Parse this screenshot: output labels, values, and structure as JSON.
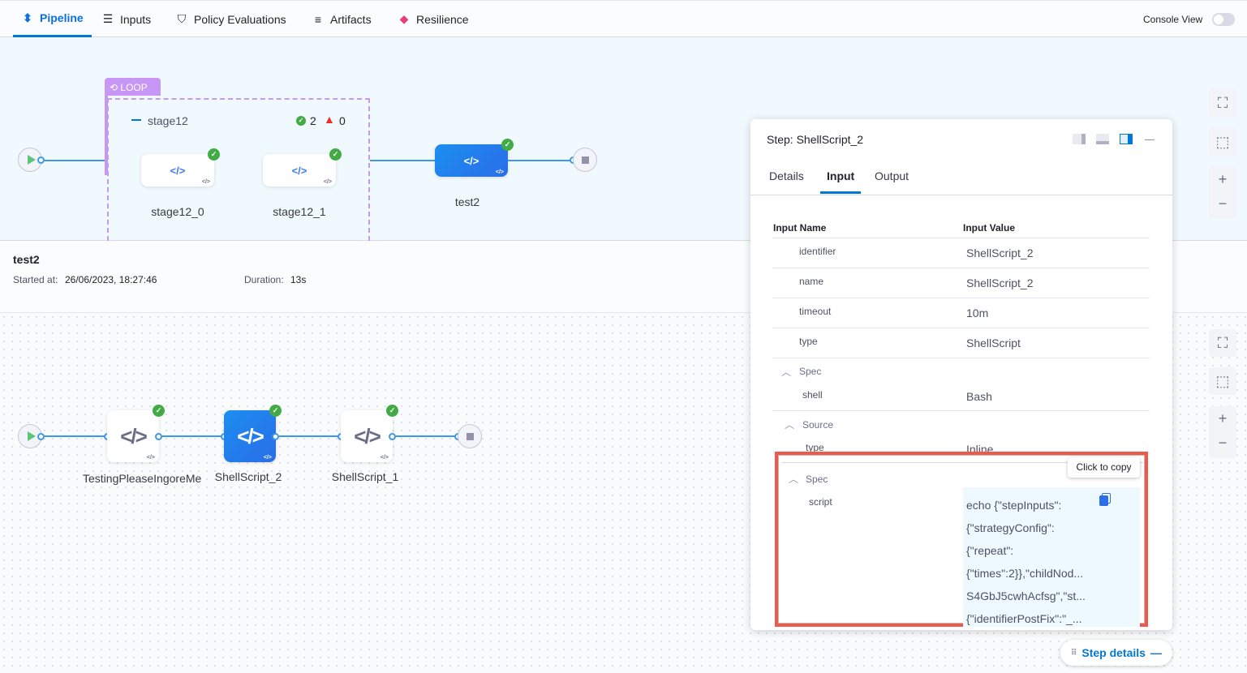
{
  "tabs": [
    {
      "label": "Pipeline",
      "icon": "pipeline-icon",
      "active": true
    },
    {
      "label": "Inputs",
      "icon": "inputs-icon"
    },
    {
      "label": "Policy Evaluations",
      "icon": "shield-check-icon"
    },
    {
      "label": "Artifacts",
      "icon": "artifacts-icon"
    },
    {
      "label": "Resilience",
      "icon": "resilience-icon"
    }
  ],
  "console_view": {
    "label": "Console View",
    "enabled": false
  },
  "upper_graph": {
    "loop_label": "LOOP",
    "stage_group": "stage12",
    "success_count": "2",
    "failure_count": "0",
    "stages": [
      "stage12_0",
      "stage12_1"
    ],
    "next_stage": "test2"
  },
  "info": {
    "title": "test2",
    "started_label": "Started at:",
    "started_value": "26/06/2023, 18:27:46",
    "duration_label": "Duration:",
    "duration_value": "13s"
  },
  "steps": [
    "TestingPleaseIngoreMe",
    "ShellScript_2",
    "ShellScript_1"
  ],
  "panel": {
    "title": "Step: ShellScript_2",
    "tabs": [
      "Details",
      "Input",
      "Output"
    ],
    "active_tab": "Input",
    "col_name": "Input Name",
    "col_value": "Input Value",
    "rows": [
      {
        "k": "identifier",
        "v": "ShellScript_2"
      },
      {
        "k": "name",
        "v": "ShellScript_2"
      },
      {
        "k": "timeout",
        "v": "10m"
      },
      {
        "k": "type",
        "v": "ShellScript"
      }
    ],
    "spec_label": "Spec",
    "shell": {
      "k": "shell",
      "v": "Bash"
    },
    "source_label": "Source",
    "source_type": {
      "k": "type",
      "v": "Inline"
    },
    "spec2_label": "Spec",
    "script_key": "script",
    "script_lines": [
      "echo {\"stepInputs\":",
      "{\"strategyConfig\":",
      "{\"repeat\":",
      "{\"times\":2}},\"childNod...",
      "S4GbJ5cwhAcfsg\",\"st...",
      "{\"identifierPostFix\":\"_..."
    ],
    "tooltip": "Click to copy"
  },
  "step_details_button": "Step details",
  "colors": {
    "accent": "#0278d5",
    "highlight_box": "#f0584a",
    "loop": "#c896f5",
    "success": "#42ab45"
  }
}
